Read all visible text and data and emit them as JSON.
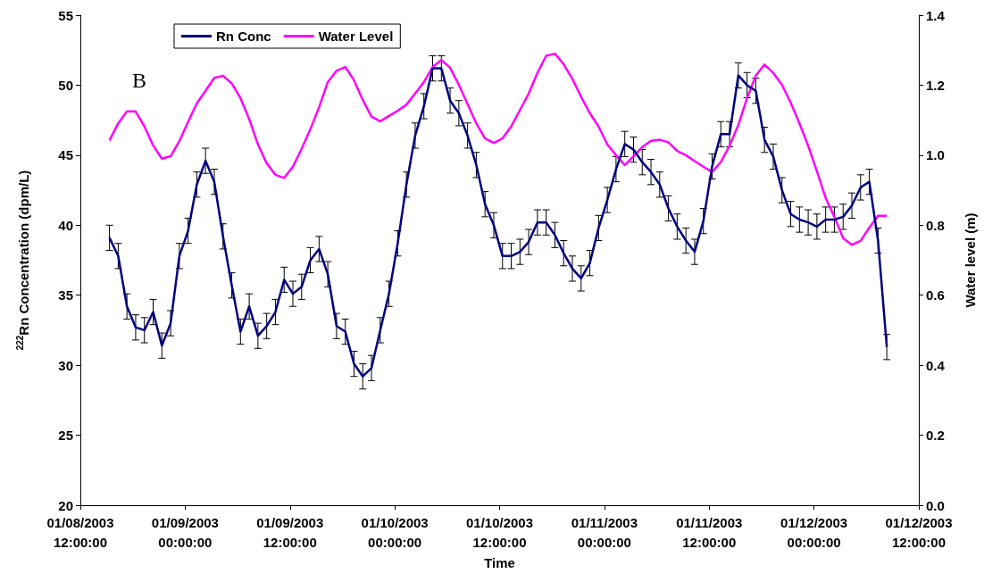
{
  "chart_data": {
    "type": "line",
    "xlabel": "Time",
    "ylabel": "$^{222}$Rn Concentration (dpm/L)",
    "y2label": "Water level (m)",
    "annotations": [
      "B"
    ],
    "legend": "top left",
    "marker": "none",
    "line_style": "solid",
    "grid": false,
    "xlim": [
      "2003-01-08T12:00",
      "2003-01-12T12:00"
    ],
    "xticks": [
      {
        "value": "2003-01-08T12:00",
        "label": "01/08/2003\n12:00:00"
      },
      {
        "value": "2003-01-09T00:00",
        "label": "01/09/2003\n00:00:00"
      },
      {
        "value": "2003-01-09T12:00",
        "label": "01/09/2003\n12:00:00"
      },
      {
        "value": "2003-01-10T00:00",
        "label": "01/10/2003\n00:00:00"
      },
      {
        "value": "2003-01-10T12:00",
        "label": "01/10/2003\n12:00:00"
      },
      {
        "value": "2003-01-11T00:00",
        "label": "01/11/2003\n00:00:00"
      },
      {
        "value": "2003-01-11T12:00",
        "label": "01/11/2003\n12:00:00"
      },
      {
        "value": "2003-01-12T00:00",
        "label": "01/12/2003\n00:00:00"
      },
      {
        "value": "2003-01-12T12:00",
        "label": "01/12/2003\n12:00:00"
      }
    ],
    "ylim": [
      20,
      55
    ],
    "yticks": [
      20,
      25,
      30,
      35,
      40,
      45,
      50,
      55
    ],
    "y2lim": [
      0,
      1.4
    ],
    "y2ticks": [
      {
        "value": 0,
        "label": "0.0"
      },
      {
        "value": 0.2,
        "label": "0.2"
      },
      {
        "value": 0.4,
        "label": "0.4"
      },
      {
        "value": 0.6,
        "label": "0.6"
      },
      {
        "value": 0.8,
        "label": "0.8"
      },
      {
        "value": 1,
        "label": "1.0"
      },
      {
        "value": 1.2,
        "label": "1.2"
      },
      {
        "value": 1.4,
        "label": "1.4"
      }
    ],
    "x": [
      "2003-01-08T15:20",
      "2003-01-08T16:20",
      "2003-01-08T17:20",
      "2003-01-08T18:20",
      "2003-01-08T19:20",
      "2003-01-08T20:20",
      "2003-01-08T21:20",
      "2003-01-08T22:20",
      "2003-01-08T23:20",
      "2003-01-09T00:20",
      "2003-01-09T01:20",
      "2003-01-09T02:20",
      "2003-01-09T03:20",
      "2003-01-09T04:20",
      "2003-01-09T05:20",
      "2003-01-09T06:20",
      "2003-01-09T07:20",
      "2003-01-09T08:20",
      "2003-01-09T09:20",
      "2003-01-09T10:20",
      "2003-01-09T11:20",
      "2003-01-09T12:20",
      "2003-01-09T13:20",
      "2003-01-09T14:20",
      "2003-01-09T15:20",
      "2003-01-09T16:20",
      "2003-01-09T17:20",
      "2003-01-09T18:20",
      "2003-01-09T19:20",
      "2003-01-09T20:20",
      "2003-01-09T21:20",
      "2003-01-09T22:20",
      "2003-01-09T23:20",
      "2003-01-10T00:20",
      "2003-01-10T01:20",
      "2003-01-10T02:20",
      "2003-01-10T03:20",
      "2003-01-10T04:20",
      "2003-01-10T05:20",
      "2003-01-10T06:20",
      "2003-01-10T07:20",
      "2003-01-10T08:20",
      "2003-01-10T09:20",
      "2003-01-10T10:20",
      "2003-01-10T11:20",
      "2003-01-10T12:20",
      "2003-01-10T13:20",
      "2003-01-10T14:20",
      "2003-01-10T15:20",
      "2003-01-10T16:20",
      "2003-01-10T17:20",
      "2003-01-10T18:20",
      "2003-01-10T19:20",
      "2003-01-10T20:20",
      "2003-01-10T21:20",
      "2003-01-10T22:20",
      "2003-01-10T23:20",
      "2003-01-11T00:20",
      "2003-01-11T01:20",
      "2003-01-11T02:20",
      "2003-01-11T03:20",
      "2003-01-11T04:20",
      "2003-01-11T05:20",
      "2003-01-11T06:20",
      "2003-01-11T07:20",
      "2003-01-11T08:20",
      "2003-01-11T09:20",
      "2003-01-11T10:20",
      "2003-01-11T11:20",
      "2003-01-11T12:20",
      "2003-01-11T13:20",
      "2003-01-11T14:20",
      "2003-01-11T15:20",
      "2003-01-11T16:20",
      "2003-01-11T17:20",
      "2003-01-11T18:20",
      "2003-01-11T19:20",
      "2003-01-11T20:20",
      "2003-01-11T21:20",
      "2003-01-11T22:20",
      "2003-01-11T23:20",
      "2003-01-12T00:20",
      "2003-01-12T01:20",
      "2003-01-12T02:20",
      "2003-01-12T03:20",
      "2003-01-12T04:20",
      "2003-01-12T05:20",
      "2003-01-12T06:20",
      "2003-01-12T07:20",
      "2003-01-12T08:20"
    ],
    "series": [
      {
        "name": "Rn Conc",
        "color": "#000080",
        "values": [
          39.1,
          37.8,
          34.2,
          32.7,
          32.5,
          33.8,
          31.4,
          33.0,
          37.8,
          39.6,
          42.9,
          44.6,
          43.1,
          39.2,
          35.7,
          32.4,
          34.2,
          32.1,
          32.8,
          33.8,
          36.1,
          35.1,
          35.6,
          37.5,
          38.3,
          36.5,
          32.8,
          32.4,
          30.1,
          29.2,
          29.8,
          32.5,
          35.1,
          38.7,
          42.9,
          46.4,
          48.5,
          51.2,
          51.2,
          48.9,
          48.0,
          46.4,
          44.3,
          41.5,
          40.0,
          37.8,
          37.8,
          38.1,
          38.8,
          40.2,
          40.2,
          39.3,
          38.0,
          36.9,
          36.2,
          37.3,
          39.8,
          41.8,
          44.0,
          45.8,
          45.4,
          44.5,
          43.8,
          42.9,
          41.2,
          39.9,
          38.9,
          38.1,
          40.3,
          44.2,
          46.5,
          46.5,
          50.7,
          50.0,
          49.6,
          46.1,
          44.9,
          42.5,
          40.8,
          40.4,
          40.2,
          39.9,
          40.4,
          40.4,
          40.6,
          41.4,
          42.7,
          43.1,
          38.9,
          31.3
        ],
        "errors": [
          0.9,
          0.9,
          0.9,
          0.9,
          0.9,
          0.9,
          0.9,
          0.9,
          0.9,
          0.9,
          0.9,
          0.9,
          0.9,
          0.9,
          0.9,
          0.9,
          0.9,
          0.9,
          0.9,
          0.9,
          0.9,
          0.9,
          0.9,
          0.9,
          0.9,
          0.9,
          0.9,
          0.9,
          0.9,
          0.9,
          0.9,
          0.9,
          0.9,
          0.9,
          0.9,
          0.9,
          0.9,
          0.9,
          0.9,
          0.9,
          0.9,
          0.9,
          0.9,
          0.9,
          0.9,
          0.9,
          0.9,
          0.9,
          0.9,
          0.9,
          0.9,
          0.9,
          0.9,
          0.9,
          0.9,
          0.9,
          0.9,
          0.9,
          0.9,
          0.9,
          0.9,
          0.9,
          0.9,
          0.9,
          0.9,
          0.9,
          0.9,
          0.9,
          0.9,
          0.9,
          0.9,
          0.9,
          0.9,
          0.9,
          0.9,
          0.9,
          0.9,
          0.9,
          0.9,
          0.9,
          0.9,
          0.9,
          0.9,
          0.9,
          0.9,
          0.9,
          0.9,
          0.9,
          0.9,
          0.9
        ]
      },
      {
        "name": "Water Level",
        "color": "#ff00ff",
        "axis": "y2",
        "values": [
          1.042,
          1.091,
          1.125,
          1.125,
          1.082,
          1.028,
          0.99,
          0.997,
          1.04,
          1.095,
          1.148,
          1.184,
          1.221,
          1.227,
          1.205,
          1.163,
          1.103,
          1.031,
          0.977,
          0.944,
          0.935,
          0.967,
          1.018,
          1.074,
          1.137,
          1.209,
          1.241,
          1.252,
          1.214,
          1.158,
          1.11,
          1.097,
          1.112,
          1.127,
          1.144,
          1.176,
          1.209,
          1.252,
          1.272,
          1.25,
          1.201,
          1.146,
          1.091,
          1.048,
          1.035,
          1.048,
          1.082,
          1.129,
          1.176,
          1.235,
          1.284,
          1.29,
          1.26,
          1.218,
          1.167,
          1.12,
          1.082,
          1.031,
          1.0,
          0.972,
          0.997,
          1.023,
          1.041,
          1.044,
          1.037,
          1.012,
          1.0,
          0.983,
          0.967,
          0.952,
          0.98,
          1.027,
          1.086,
          1.163,
          1.227,
          1.259,
          1.235,
          1.201,
          1.15,
          1.091,
          1.027,
          0.954,
          0.878,
          0.824,
          0.763,
          0.744,
          0.755,
          0.793,
          0.827,
          0.827
        ]
      }
    ]
  }
}
